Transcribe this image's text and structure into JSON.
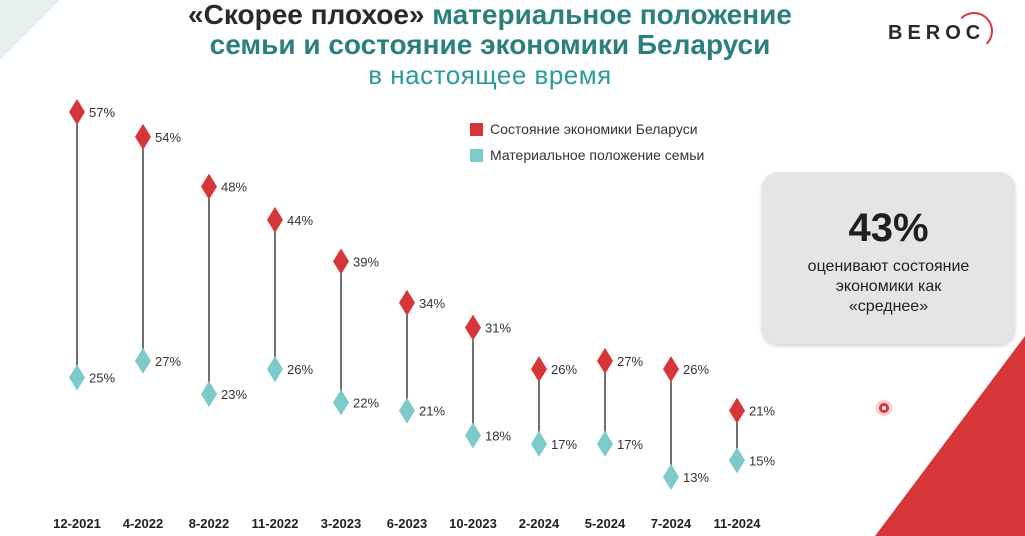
{
  "title": {
    "part1": "«Скорее плохое»",
    "part2": "материальное положение",
    "line2": "семьи и состояние экономики Беларуси",
    "line3": "в настоящее время"
  },
  "logo": {
    "text": "BEROC"
  },
  "legend": [
    {
      "label": "Состояние экономики Беларуси",
      "color": "#d63638"
    },
    {
      "label": "Материальное положение семьи",
      "color": "#7ccaca"
    }
  ],
  "callout": {
    "value": "43%",
    "line1": "оценивают состояние",
    "line2": "экономики как",
    "line3": "«среднее»"
  },
  "chart_data": {
    "type": "dumbbell",
    "categories": [
      "12-2021",
      "4-2022",
      "8-2022",
      "11-2022",
      "3-2023",
      "6-2023",
      "10-2023",
      "2-2024",
      "5-2024",
      "7-2024",
      "11-2024"
    ],
    "series": [
      {
        "name": "Состояние экономики Беларуси",
        "color": "#d63638",
        "values": [
          57,
          54,
          48,
          44,
          39,
          34,
          31,
          26,
          27,
          26,
          21
        ]
      },
      {
        "name": "Материальное положение семьи",
        "color": "#7ccaca",
        "values": [
          25,
          27,
          23,
          26,
          22,
          21,
          18,
          17,
          17,
          13,
          15
        ]
      }
    ],
    "value_suffix": "%",
    "ylim": [
      10,
      60
    ],
    "grid": false
  }
}
